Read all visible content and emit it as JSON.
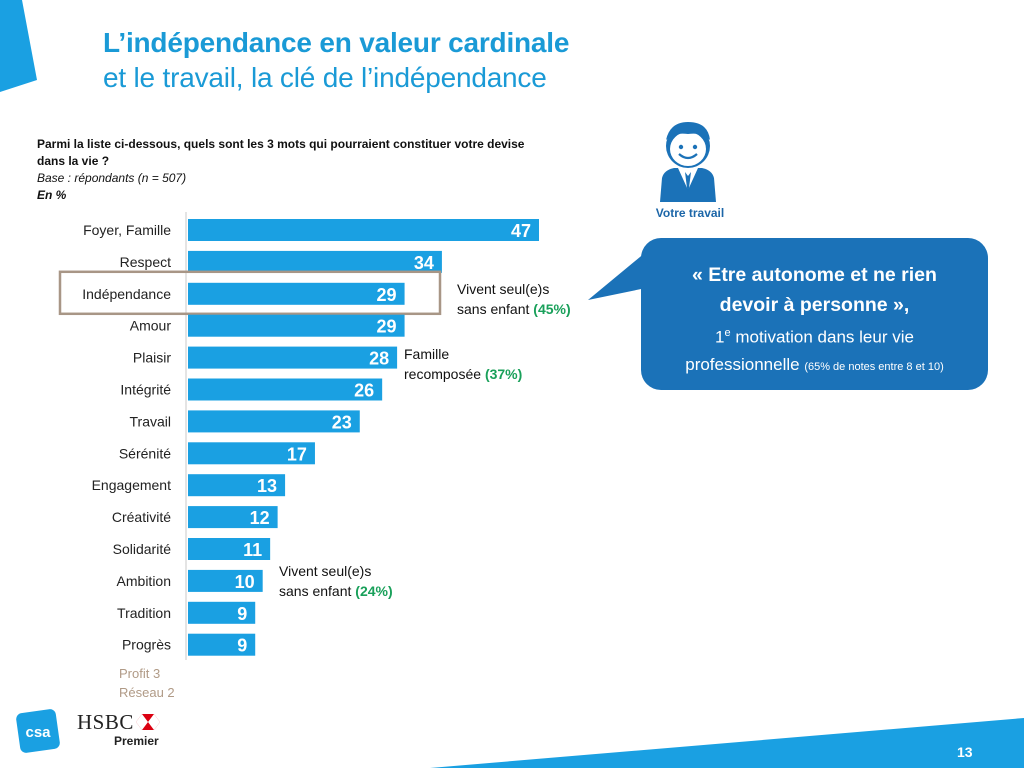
{
  "title": {
    "line1": "L’indépendance en valeur cardinale",
    "line2": "et le travail, la clé de l’indépendance"
  },
  "question": {
    "text": "Parmi la liste ci-dessous, quels sont les 3 mots qui pourraient constituer votre devise dans la vie ?",
    "base": "Base : répondants  (n = 507)",
    "unit": "En %"
  },
  "chart_data": {
    "type": "bar",
    "orientation": "horizontal",
    "title": "",
    "categories": [
      "Foyer, Famille",
      "Respect",
      "Indépendance",
      "Amour",
      "Plaisir",
      "Intégrité",
      "Travail",
      "Sérénité",
      "Engagement",
      "Créativité",
      "Solidarité",
      "Ambition",
      "Tradition",
      "Progrès"
    ],
    "values": [
      47,
      34,
      29,
      29,
      28,
      26,
      23,
      17,
      13,
      12,
      11,
      10,
      9,
      9
    ],
    "highlighted_category": "Indépendance",
    "xlabel": "",
    "ylabel": "",
    "xlim": [
      0,
      50
    ],
    "bar_color": "#1aa0e2",
    "highlight_color": "#a89686"
  },
  "annotations": {
    "indep": {
      "text1": "Vivent seul(e)s",
      "text2": "sans enfant",
      "pct": "(45%)"
    },
    "plaisir": {
      "text1": "Famille",
      "text2": "recomposée",
      "pct": "(37%)"
    },
    "bottom": {
      "text1": "Vivent seul(e)s",
      "text2": "sans enfant",
      "pct": "(24%)"
    }
  },
  "avatar": {
    "label": "Votre travail",
    "icon": "businessman-icon"
  },
  "quote": {
    "line1": "« Etre autonome et ne rien",
    "line2": "devoir à personne »,",
    "rank": "1",
    "rank_sup": "e",
    "line3": " motivation dans leur vie",
    "line4": "professionnelle ",
    "note": "(65% de notes entre 8 et 10)"
  },
  "sub_notes": {
    "line1": "Profit 3",
    "line2": "Réseau 2"
  },
  "logos": {
    "csa": "csa",
    "hsbc": "HSBC",
    "premier": "Premier"
  },
  "page_number": "13",
  "colors": {
    "brand_blue": "#1a9ad6",
    "dark_blue": "#1b72b8",
    "green": "#19a05a"
  }
}
